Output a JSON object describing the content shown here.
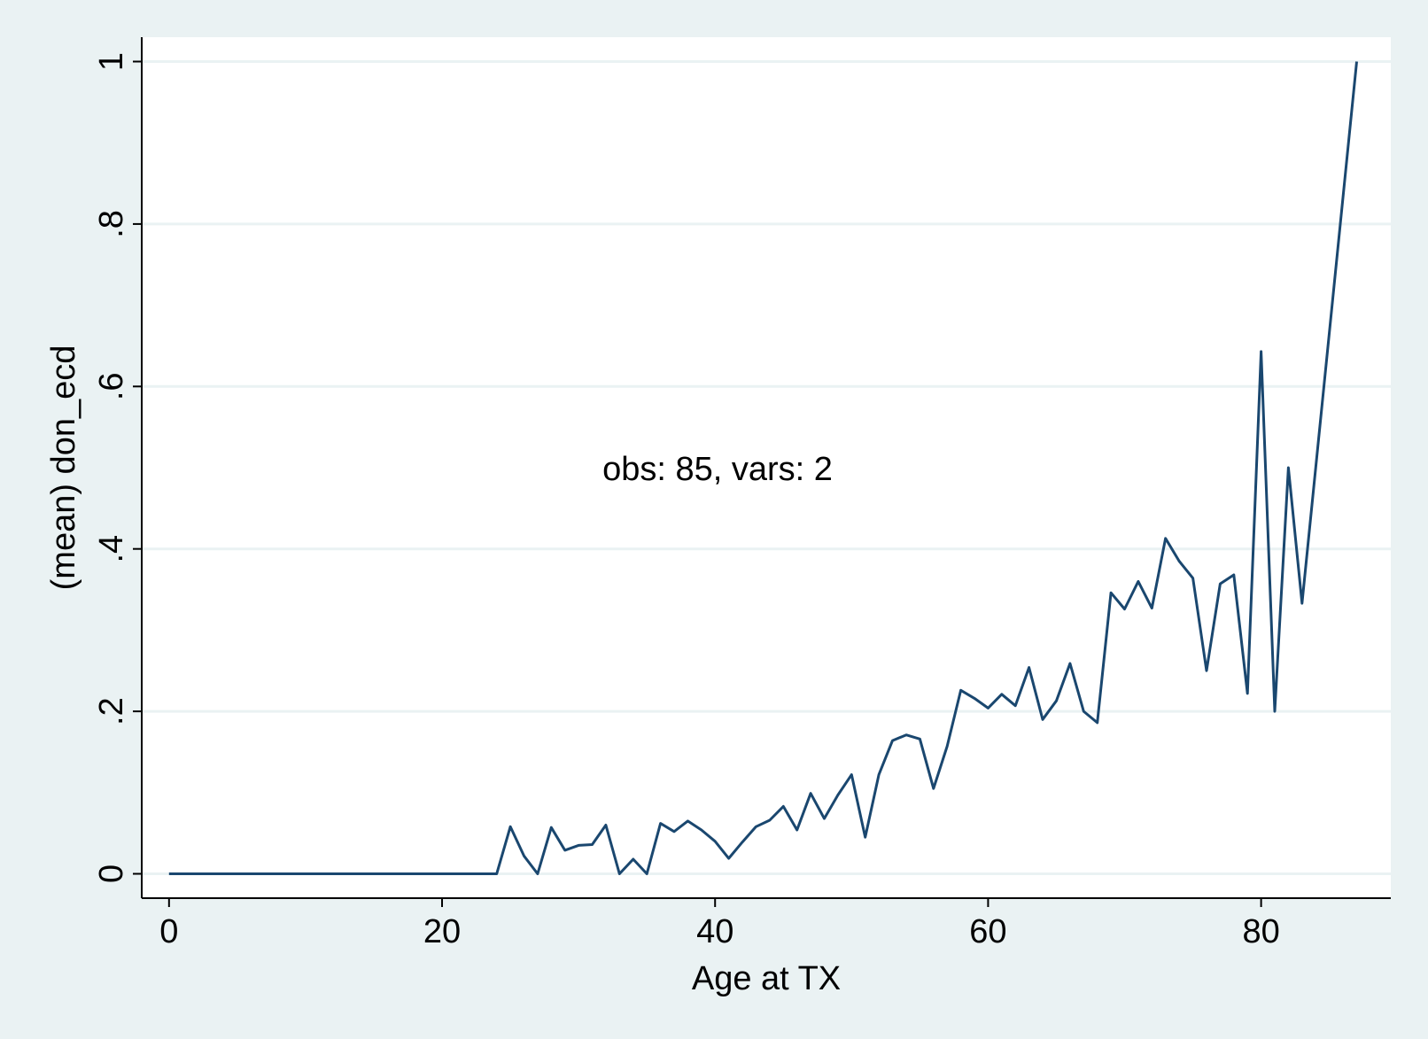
{
  "colors": {
    "background": "#eaf2f3",
    "plot_background": "#ffffff",
    "line": "#1a476f",
    "grid": "#eaf2f3",
    "axis": "#000000"
  },
  "annotation": "obs: 85, vars: 2",
  "chart_data": {
    "type": "line",
    "title": "",
    "xlabel": "Age at TX",
    "ylabel": "(mean) don_ecd",
    "xlim": [
      -2,
      89.5
    ],
    "ylim": [
      -0.03,
      1.03
    ],
    "x_ticks": [
      0,
      20,
      40,
      60,
      80
    ],
    "x_tick_labels": [
      "0",
      "20",
      "40",
      "60",
      "80"
    ],
    "y_ticks": [
      0,
      0.2,
      0.4,
      0.6,
      0.8,
      1
    ],
    "y_tick_labels": [
      "0",
      ".2",
      ".4",
      ".6",
      ".8",
      "1"
    ],
    "grid": true,
    "x": [
      0,
      1,
      2,
      3,
      4,
      5,
      6,
      7,
      8,
      9,
      10,
      11,
      12,
      13,
      14,
      15,
      16,
      17,
      18,
      19,
      20,
      21,
      22,
      23,
      24,
      25,
      26,
      27,
      28,
      29,
      30,
      31,
      32,
      33,
      34,
      35,
      36,
      37,
      38,
      39,
      40,
      41,
      42,
      43,
      44,
      45,
      46,
      47,
      48,
      49,
      50,
      51,
      52,
      53,
      54,
      55,
      56,
      57,
      58,
      59,
      60,
      61,
      62,
      63,
      64,
      65,
      66,
      67,
      68,
      69,
      70,
      71,
      72,
      73,
      74,
      75,
      76,
      77,
      78,
      79,
      80,
      81,
      82,
      83,
      87
    ],
    "y": [
      0,
      0,
      0,
      0,
      0,
      0,
      0,
      0,
      0,
      0,
      0,
      0,
      0,
      0,
      0,
      0,
      0,
      0,
      0,
      0,
      0,
      0,
      0,
      0,
      0,
      0.058,
      0.022,
      0,
      0.057,
      0.029,
      0.035,
      0.036,
      0.06,
      0,
      0.018,
      0,
      0.062,
      0.052,
      0.065,
      0.054,
      0.04,
      0.019,
      0.039,
      0.058,
      0.066,
      0.083,
      0.054,
      0.099,
      0.068,
      0.097,
      0.122,
      0.045,
      0.122,
      0.164,
      0.171,
      0.166,
      0.105,
      0.157,
      0.226,
      0.216,
      0.204,
      0.221,
      0.207,
      0.254,
      0.19,
      0.213,
      0.259,
      0.2,
      0.186,
      0.346,
      0.326,
      0.36,
      0.327,
      0.413,
      0.385,
      0.364,
      0.25,
      0.357,
      0.368,
      0.222,
      0.643,
      0.2,
      0.5,
      0.333,
      1
    ]
  }
}
